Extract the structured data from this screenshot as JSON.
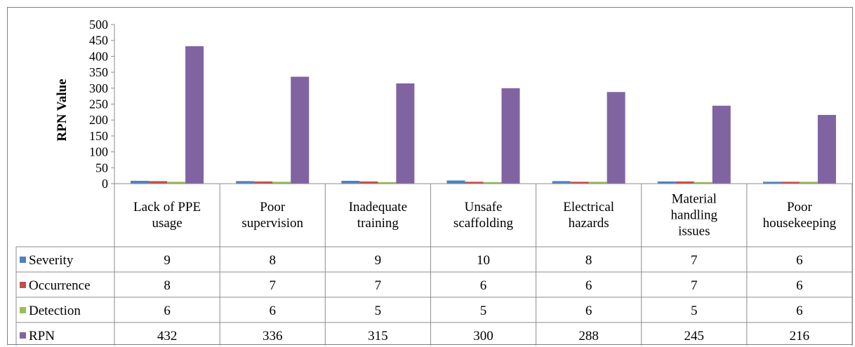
{
  "chart_data": {
    "type": "bar",
    "title": "",
    "xlabel": "",
    "ylabel": "RPN Value",
    "ylim": [
      0,
      500
    ],
    "ytick_step": 50,
    "grid": false,
    "legend": "data-table-left",
    "categories": [
      [
        "Lack of PPE",
        "usage"
      ],
      [
        "Poor",
        "supervision"
      ],
      [
        "Inadequate",
        "training"
      ],
      [
        "Unsafe",
        "scaffolding"
      ],
      [
        "Electrical",
        "hazards"
      ],
      [
        "Material",
        "handling",
        "issues"
      ],
      [
        "Poor",
        "housekeeping"
      ]
    ],
    "series": [
      {
        "name": "Severity",
        "color": "#4f81bd",
        "values": [
          9,
          8,
          9,
          10,
          8,
          7,
          6
        ]
      },
      {
        "name": "Occurrence",
        "color": "#c0504d",
        "values": [
          8,
          7,
          7,
          6,
          6,
          7,
          6
        ]
      },
      {
        "name": "Detection",
        "color": "#9bbb59",
        "values": [
          6,
          6,
          5,
          5,
          6,
          5,
          6
        ]
      },
      {
        "name": "RPN",
        "color": "#8064a2",
        "values": [
          432,
          336,
          315,
          300,
          288,
          245,
          216
        ]
      }
    ]
  }
}
